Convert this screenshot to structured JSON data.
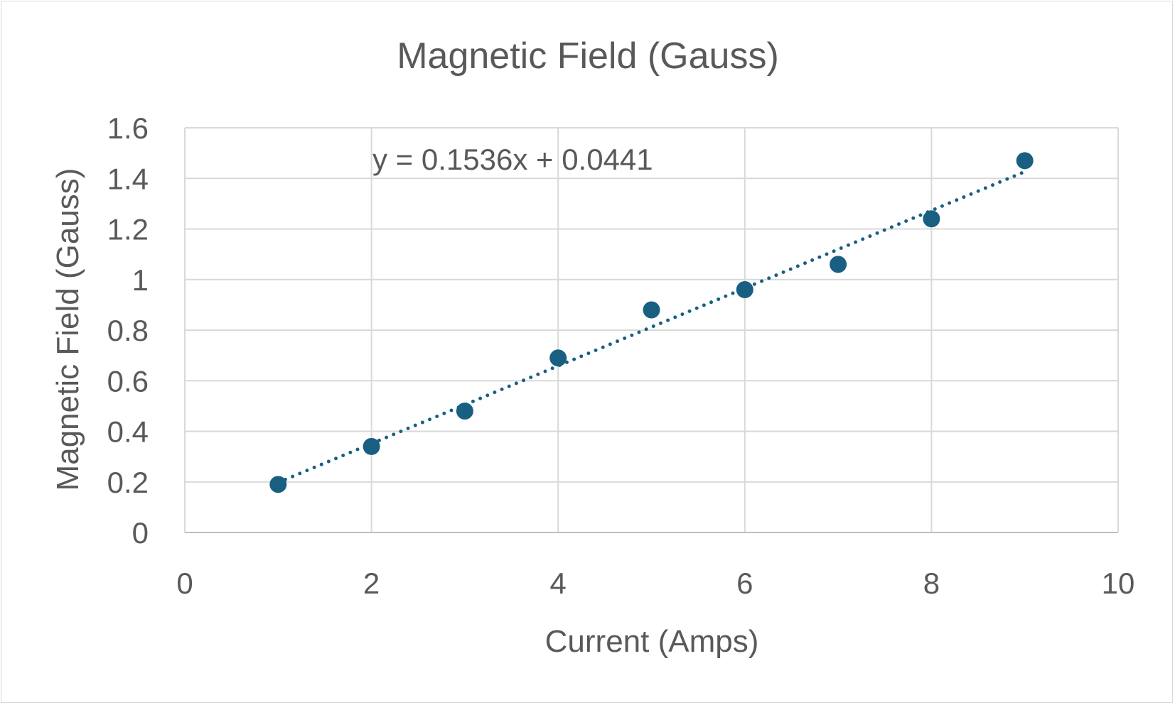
{
  "chart_data": {
    "type": "scatter",
    "title": "Magnetic Field (Gauss)",
    "xlabel": "Current (Amps)",
    "ylabel": "Magnetic Field (Gauss)",
    "xlim": [
      0,
      10
    ],
    "ylim": [
      0,
      1.6
    ],
    "x_ticks": [
      "0",
      "2",
      "4",
      "6",
      "8",
      "10"
    ],
    "y_ticks": [
      "0",
      "0.2",
      "0.4",
      "0.6",
      "0.8",
      "1",
      "1.2",
      "1.4",
      "1.6"
    ],
    "grid": true,
    "x": [
      1,
      2,
      3,
      4,
      5,
      6,
      7,
      8,
      9
    ],
    "y": [
      0.19,
      0.34,
      0.48,
      0.69,
      0.88,
      0.96,
      1.06,
      1.24,
      1.47
    ],
    "trendline": {
      "type": "linear",
      "slope": 0.1536,
      "intercept": 0.0441,
      "style": "dotted",
      "x_range": [
        1,
        9
      ]
    },
    "equation_label": "y = 0.1536x + 0.0441",
    "colors": {
      "marker": "#185f82",
      "text": "#595959",
      "grid": "#d9d9d9"
    }
  }
}
